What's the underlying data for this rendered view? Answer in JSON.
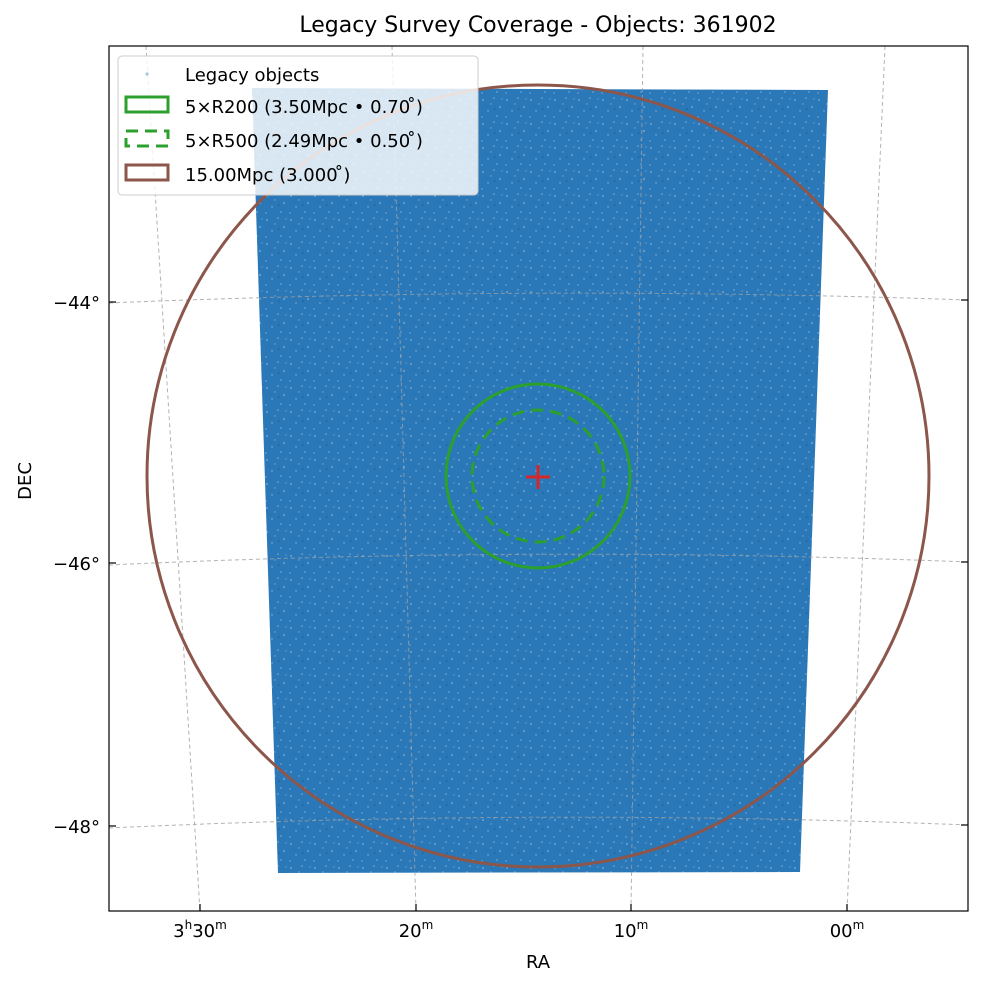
{
  "chart_data": {
    "type": "scatter",
    "title": "Legacy Survey Coverage - Objects: 361902",
    "xlabel": "RA",
    "ylabel": "DEC",
    "projection": "sky (RA/DEC, gnomonic-like WCS)",
    "x_ticks": [
      {
        "label": "3h30m",
        "hours": "3",
        "minutes": "30"
      },
      {
        "label": "20m",
        "minutes": "20"
      },
      {
        "label": "10m",
        "minutes": "10"
      },
      {
        "label": "00m",
        "minutes": "00"
      }
    ],
    "y_ticks": [
      {
        "label": "−44°",
        "value": -44
      },
      {
        "label": "−46°",
        "value": -46
      },
      {
        "label": "−48°",
        "value": -48
      }
    ],
    "grid": true,
    "legend_position": "top-left",
    "legend": [
      {
        "label": "Legacy objects",
        "kind": "points",
        "color": "#1f77b4"
      },
      {
        "label": "5×R200 (3.50Mpc • 0.70 ̊)",
        "kind": "circle-solid",
        "color": "#2ca02c"
      },
      {
        "label": "5×R500 (2.49Mpc • 0.50 ̊)",
        "kind": "circle-dashed",
        "color": "#2ca02c"
      },
      {
        "label": "15.00Mpc (3.000 ̊)",
        "kind": "circle-solid",
        "color": "#8c564b"
      }
    ],
    "series": [
      {
        "name": "Legacy objects",
        "count": 361902,
        "color": "#1f77b4",
        "footprint_corners_ra_dec": [
          {
            "ra": "3h27m30s",
            "dec": -42.9
          },
          {
            "ra": "3h01m00s",
            "dec": -42.9
          },
          {
            "ra": "3h02m30s",
            "dec": -48.3
          },
          {
            "ra": "3h26m30s",
            "dec": -48.3
          }
        ]
      }
    ],
    "center": {
      "ra": "3h14m20s",
      "dec": -45.33,
      "marker": "+",
      "color": "#d62728"
    },
    "circles": [
      {
        "name": "5×R200",
        "radius_mpc": 3.5,
        "radius_deg": 0.7,
        "style": "solid",
        "color": "#2ca02c"
      },
      {
        "name": "5×R500",
        "radius_mpc": 2.49,
        "radius_deg": 0.5,
        "style": "dashed",
        "color": "#2ca02c"
      },
      {
        "name": "15.00Mpc",
        "radius_mpc": 15.0,
        "radius_deg": 3.0,
        "style": "solid",
        "color": "#8c564b"
      }
    ]
  }
}
